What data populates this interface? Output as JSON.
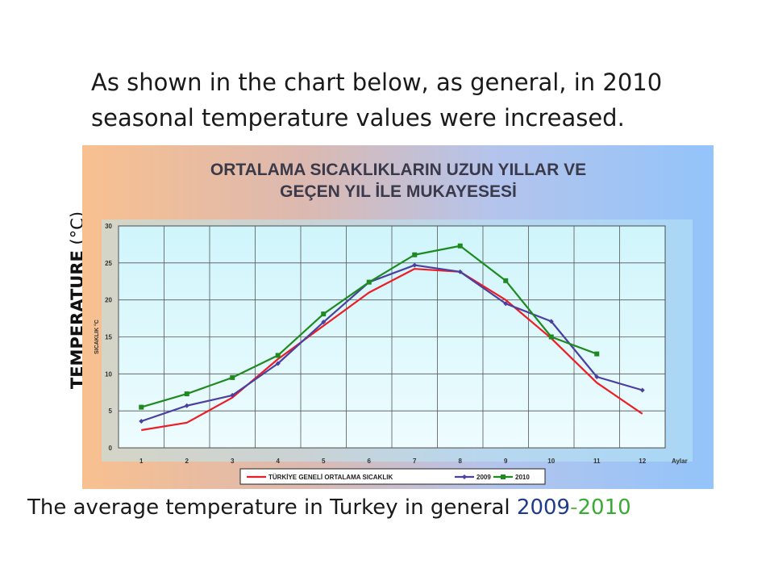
{
  "intro": {
    "line1": "As shown in the chart below, as general, in 2010",
    "line2": "seasonal temperature values were increased."
  },
  "side_label": {
    "bold": "TEMPERATURE",
    "unit": " (°C)"
  },
  "caption": {
    "text": "The average temperature in Turkey in general ",
    "year_a": "2009",
    "dash": "-",
    "year_b": "2010",
    "year_a_color": "#1f3c8c",
    "dash_color": "#6ab04c",
    "year_b_color": "#3aaa35"
  },
  "chart_data": {
    "type": "line",
    "title": "ORTALAMA SICAKLIKLARIN UZUN YILLAR VE",
    "subtitle": "GEÇEN  YIL İLE MUKAYESESİ",
    "xlabel": "Aylar",
    "ylabel": "SICAKLIK °C",
    "x": [
      1,
      2,
      3,
      4,
      5,
      6,
      7,
      8,
      9,
      10,
      11,
      12
    ],
    "xlim": [
      0.5,
      12.5
    ],
    "ylim": [
      0,
      30
    ],
    "yticks": [
      0,
      5,
      10,
      15,
      20,
      25,
      30
    ],
    "grid": true,
    "legend_position": "bottom",
    "series": [
      {
        "name": "TÜRKİYE GENELİ ORTALAMA SICAKLIK",
        "color": "#ee1c25",
        "marker": "none",
        "values": [
          2.4,
          3.4,
          6.8,
          12.0,
          16.5,
          21.0,
          24.2,
          23.8,
          20.0,
          14.8,
          8.8,
          4.6
        ]
      },
      {
        "name": "2009",
        "color": "#4b3fa0",
        "marker": "diamond",
        "values": [
          3.6,
          5.7,
          7.1,
          11.4,
          17.0,
          22.4,
          24.7,
          23.8,
          19.5,
          17.1,
          9.6,
          7.8
        ]
      },
      {
        "name": "2010",
        "color": "#1f8a1f",
        "marker": "square",
        "values": [
          5.5,
          7.3,
          9.5,
          12.5,
          18.1,
          22.4,
          26.1,
          27.3,
          22.6,
          15.0,
          12.7,
          null
        ]
      }
    ]
  }
}
